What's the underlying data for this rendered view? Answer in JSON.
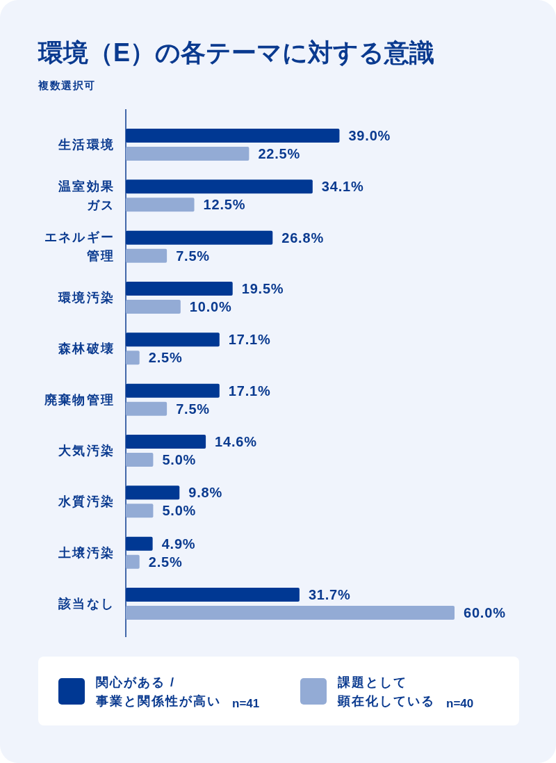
{
  "chart_data": {
    "type": "bar",
    "orientation": "horizontal",
    "title": "環境（E）の各テーマに対する意識",
    "subtitle": "複数選択可",
    "categories": [
      "生活環境",
      "温室効果ガス",
      "エネルギー管理",
      "環境汚染",
      "森林破壊",
      "廃棄物管理",
      "大気汚染",
      "水質汚染",
      "土壌汚染",
      "該当なし"
    ],
    "series": [
      {
        "name": "関心がある / 事業と関係性が高い",
        "color": "#003893",
        "values": [
          39.0,
          34.1,
          26.8,
          19.5,
          17.1,
          17.1,
          14.6,
          9.8,
          4.9,
          31.7
        ],
        "value_labels": [
          "39.0%",
          "34.1%",
          "26.8%",
          "19.5%",
          "17.1%",
          "17.1%",
          "14.6%",
          "9.8%",
          "4.9%",
          "31.7%"
        ]
      },
      {
        "name": "課題として顕在化している",
        "color": "#93abd5",
        "values": [
          22.5,
          12.5,
          7.5,
          10.0,
          2.5,
          7.5,
          5.0,
          5.0,
          2.5,
          60.0
        ],
        "value_labels": [
          "22.5%",
          "12.5%",
          "7.5%",
          "10.0%",
          "2.5%",
          "7.5%",
          "5.0%",
          "5.0%",
          "2.5%",
          "60.0%"
        ]
      }
    ],
    "annotations": [
      "n=41",
      "n=40"
    ],
    "legend": "bottom"
  }
}
